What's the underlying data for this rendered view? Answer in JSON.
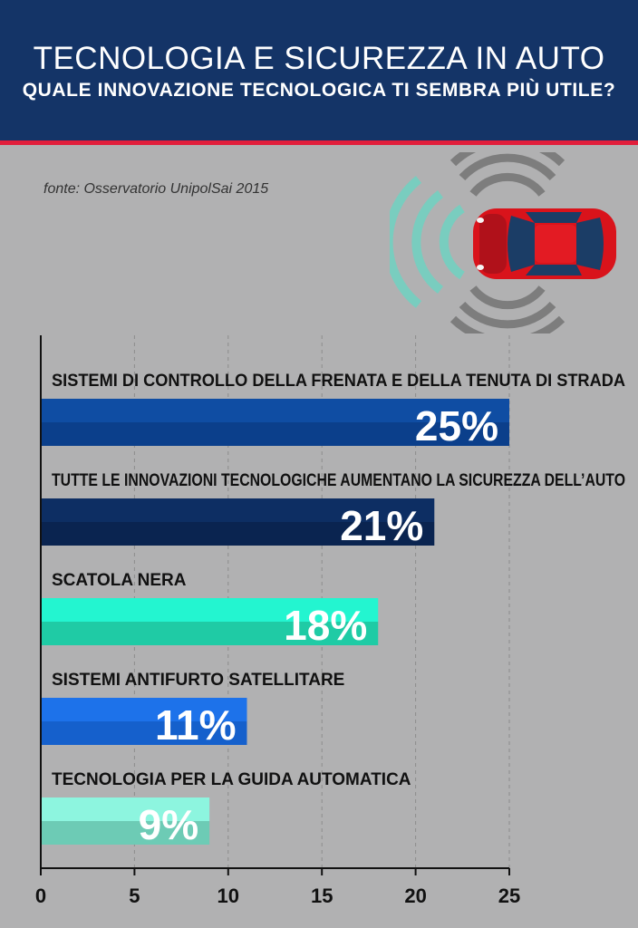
{
  "header": {
    "title": "TECNOLOGIA E SICUREZZA IN AUTO",
    "subtitle": "QUALE INNOVAZIONE TECNOLOGICA TI SEMBRA PIÙ UTILE?"
  },
  "source": "fonte: Osservatorio UnipolSai 2015",
  "colors": {
    "header": "#143467",
    "accent_stripe": "#e11e3b",
    "background": "#b1b1b2",
    "car": "#d9131b",
    "sensor_waves_front": "#79cdbf",
    "sensor_waves_other": "#7d7d7d"
  },
  "icons": {
    "illustration": "car-sensor-icon"
  },
  "chart_data": {
    "type": "bar",
    "orientation": "horizontal",
    "categories": [
      "SISTEMI DI CONTROLLO DELLA FRENATA E DELLA TENUTA DI STRADA",
      "TUTTE LE INNOVAZIONI TECNOLOGICHE AUMENTANO LA SICUREZZA DELL’AUTO",
      "SCATOLA NERA",
      "SISTEMI ANTIFURTO SATELLITARE",
      "TECNOLOGIA PER LA GUIDA AUTOMATICA"
    ],
    "values": [
      25,
      21,
      18,
      11,
      9
    ],
    "value_labels": [
      "25%",
      "21%",
      "18%",
      "11%",
      "9%"
    ],
    "bar_colors": [
      [
        "#0f4da3",
        "#0b3f8b"
      ],
      [
        "#0d2e63",
        "#0a2450"
      ],
      [
        "#23f5d0",
        "#1fcba5"
      ],
      [
        "#1d72ea",
        "#1560cc"
      ],
      [
        "#8df5df",
        "#6dcbb5"
      ]
    ],
    "x_ticks": [
      0,
      5,
      10,
      15,
      20,
      25
    ],
    "xlim": [
      0,
      25
    ],
    "grid": "vertical-dashed",
    "title": "",
    "xlabel": "",
    "ylabel": ""
  }
}
